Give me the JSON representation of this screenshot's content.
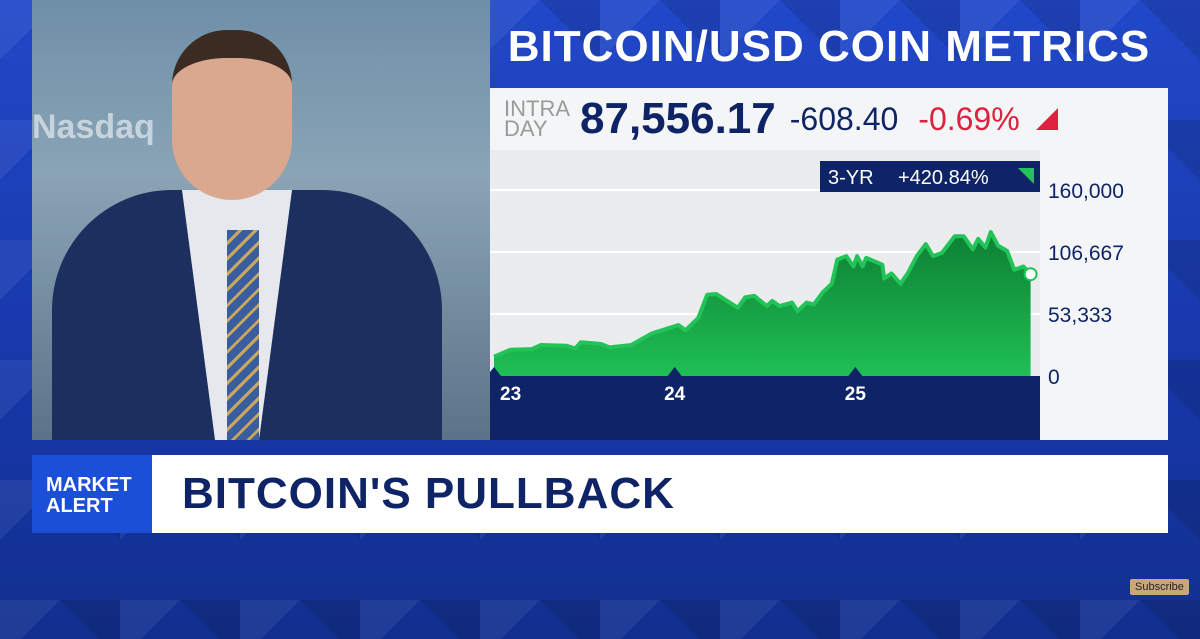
{
  "video": {
    "background_text": "Nasdaq"
  },
  "header": {
    "title": "BITCOIN/USD COIN METRICS"
  },
  "quote": {
    "label_line1": "INTRA",
    "label_line2": "DAY",
    "price": "87,556.17",
    "change": "-608.40",
    "change_pct": "-0.69%",
    "direction": "down",
    "down_color": "#e0203f"
  },
  "chart_data": {
    "type": "area",
    "badge": {
      "period": "3-YR",
      "change": "+420.84%",
      "direction": "up"
    },
    "x_tick_labels": [
      "23",
      "24",
      "25"
    ],
    "x_ticks": [
      2023,
      2024,
      2025
    ],
    "y_tick_labels": [
      "160,000",
      "106,667",
      "53,333",
      "0"
    ],
    "y_ticks": [
      0,
      53333,
      106667,
      160000
    ],
    "ylim": [
      0,
      160000
    ],
    "xlim": [
      2023,
      2026
    ],
    "grid": true,
    "color": "#18b04a",
    "x": [
      2023.0,
      2023.09,
      2023.21,
      2023.26,
      2023.4,
      2023.45,
      2023.48,
      2023.59,
      2023.64,
      2023.76,
      2023.87,
      2024.02,
      2024.06,
      2024.13,
      2024.18,
      2024.23,
      2024.35,
      2024.39,
      2024.44,
      2024.51,
      2024.54,
      2024.58,
      2024.65,
      2024.68,
      2024.73,
      2024.77,
      2024.82,
      2024.87,
      2024.9,
      2024.95,
      2024.99,
      2025.01,
      2025.04,
      2025.06,
      2025.15,
      2025.16,
      2025.2,
      2025.25,
      2025.29,
      2025.34,
      2025.39,
      2025.43,
      2025.48,
      2025.55,
      2025.6,
      2025.65,
      2025.68,
      2025.72,
      2025.75,
      2025.79,
      2025.84,
      2025.88,
      2025.93,
      2025.97
    ],
    "values": [
      16600,
      22500,
      23100,
      26700,
      26100,
      23700,
      29000,
      27600,
      24600,
      26700,
      36400,
      43900,
      39400,
      49800,
      69900,
      70500,
      58700,
      67600,
      69000,
      60200,
      64600,
      60200,
      63100,
      55700,
      63100,
      61600,
      72000,
      79400,
      100100,
      103100,
      94200,
      103100,
      94200,
      101600,
      95700,
      83900,
      88300,
      79400,
      88300,
      103100,
      113500,
      103100,
      106100,
      120300,
      120300,
      109000,
      117900,
      110500,
      123900,
      112000,
      107600,
      91300,
      94200,
      87556
    ]
  },
  "lower_third": {
    "tag_line1": "MARKET",
    "tag_line2": "ALERT",
    "headline": "BITCOIN'S PULLBACK"
  },
  "subscribe": "Subscribe"
}
